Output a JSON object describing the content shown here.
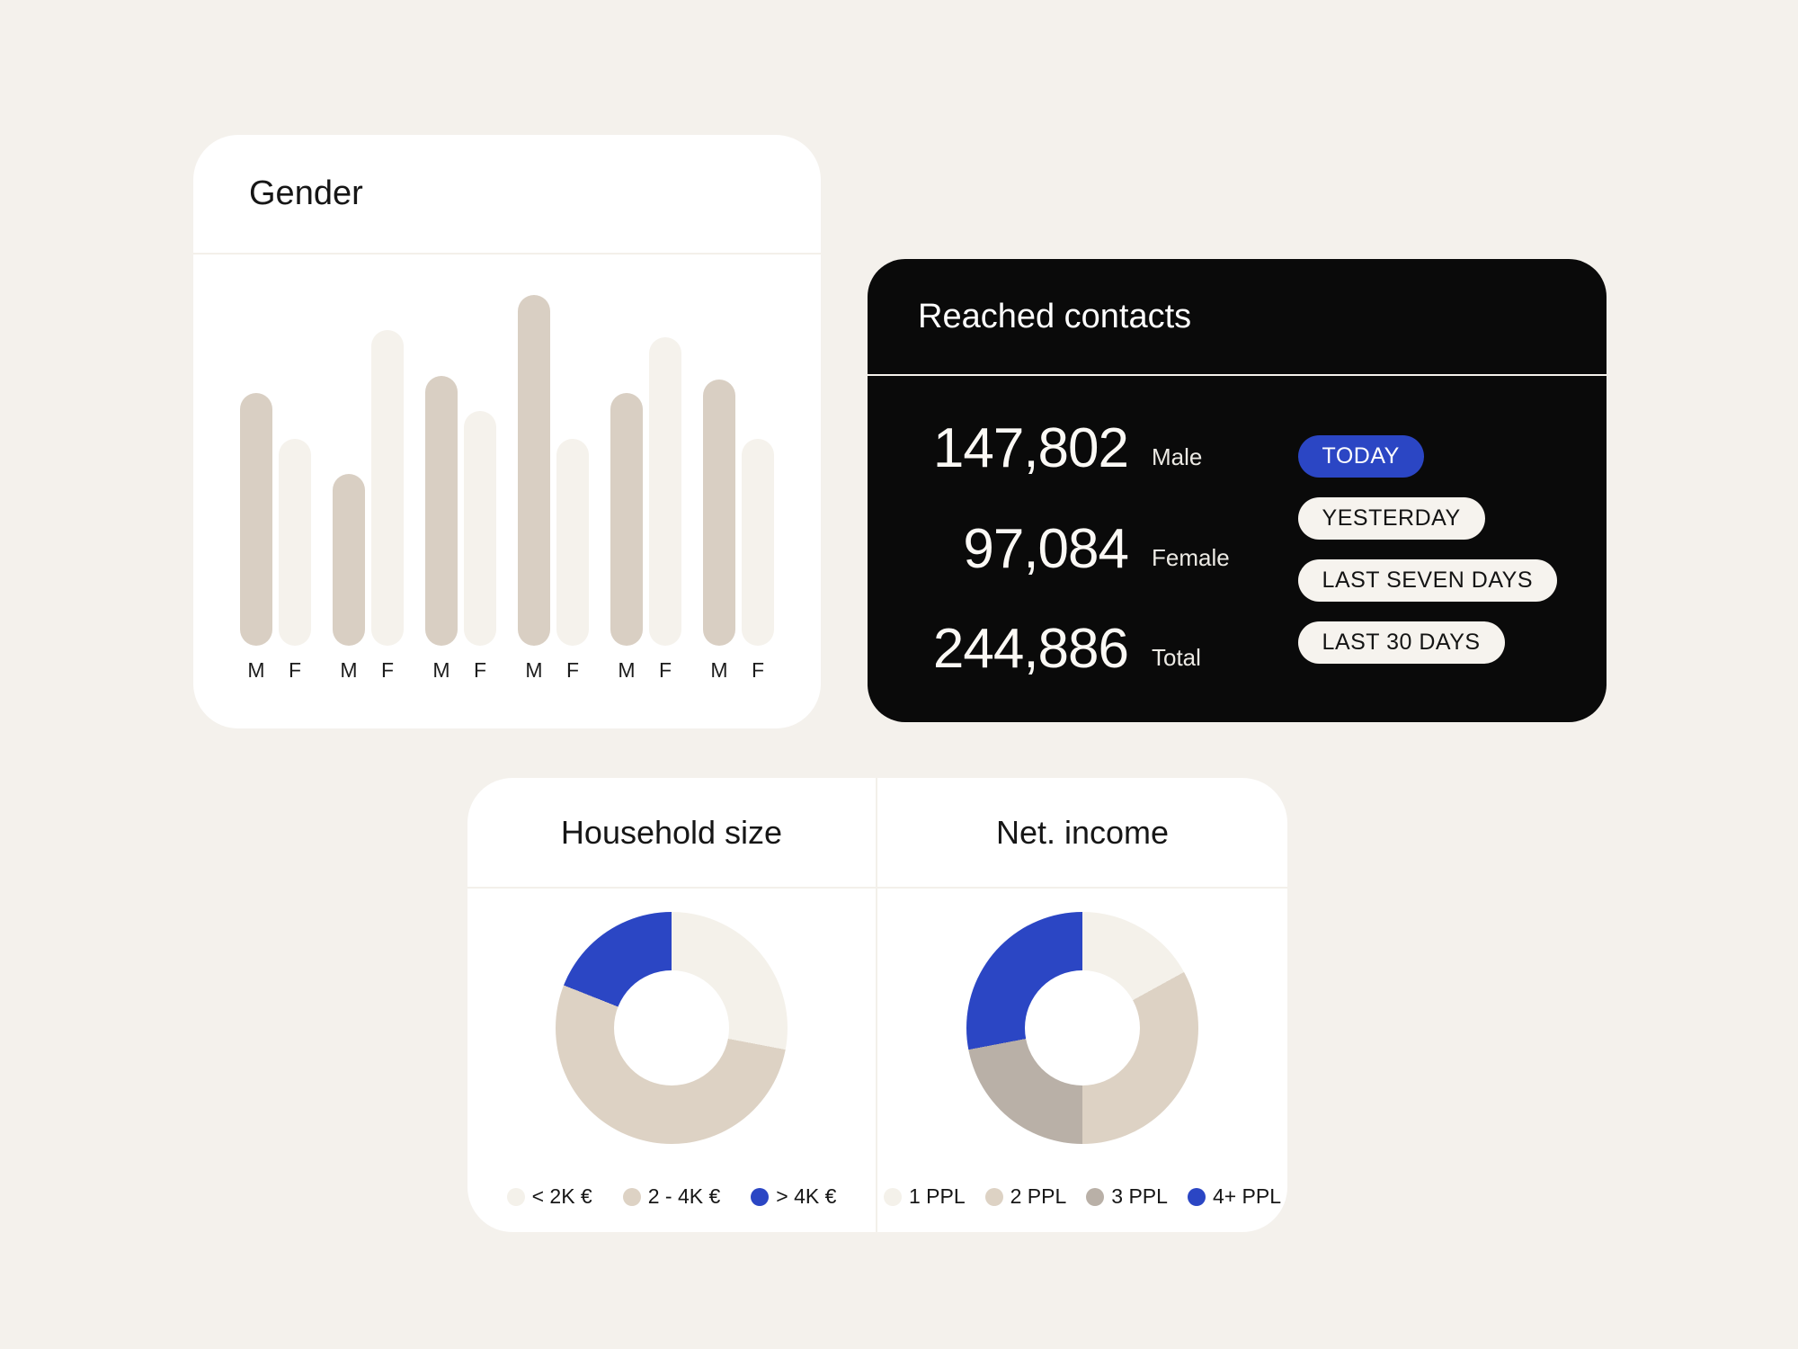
{
  "colors": {
    "page_bg": "#f4f1ec",
    "card_bg": "#ffffff",
    "dark_card_bg": "#0a0a0a",
    "accent_blue": "#2b46c4",
    "bar_male": "#d9cfc3",
    "bar_female": "#f5f2ec",
    "pill_bg": "#f6f3ee",
    "pill_text": "#141414",
    "divider": "#f3f0ea",
    "dark_divider": "#f5f2ec",
    "donut_hole": "#ffffff",
    "text_light": "#ffffff"
  },
  "gender_card": {
    "title": "Gender"
  },
  "reached_card": {
    "title": "Reached contacts",
    "stats": [
      {
        "value": "147,802",
        "label": "Male"
      },
      {
        "value": "97,084",
        "label": "Female"
      },
      {
        "value": "244,886",
        "label": "Total"
      }
    ],
    "filters": [
      {
        "label": "TODAY",
        "active": true
      },
      {
        "label": "YESTERDAY",
        "active": false
      },
      {
        "label": "LAST SEVEN DAYS",
        "active": false
      },
      {
        "label": "LAST 30 DAYS",
        "active": false
      }
    ]
  },
  "household_card": {
    "title": "Household size"
  },
  "income_card": {
    "title": "Net. income"
  },
  "chart_data": [
    {
      "type": "bar",
      "title": "Gender",
      "description": "Paired bar chart, one M (taupe) and one F (cream) bar per group, no axis scale shown; values are relative heights 0-100",
      "labels": {
        "m": "M",
        "f": "F"
      },
      "male_color": "#d9cfc3",
      "female_color": "#f5f2ec",
      "pairs": [
        {
          "m": 72,
          "f": 59
        },
        {
          "m": 49,
          "f": 90
        },
        {
          "m": 77,
          "f": 67
        },
        {
          "m": 100,
          "f": 59
        },
        {
          "m": 72,
          "f": 88
        },
        {
          "m": 76,
          "f": 59
        }
      ],
      "ylim": [
        0,
        100
      ]
    },
    {
      "type": "pie",
      "subtype": "donut",
      "title": "Household size",
      "start": "12 o'clock, clockwise",
      "slices": [
        {
          "label": "< 2K €",
          "value": 28,
          "color": "#f4f1ea"
        },
        {
          "label": "2 - 4K €",
          "value": 53,
          "color": "#ddd2c4"
        },
        {
          "label": "> 4K €",
          "value": 19,
          "color": "#2b46c4"
        }
      ],
      "legend_position": "bottom"
    },
    {
      "type": "pie",
      "subtype": "donut",
      "title": "Net. income",
      "start": "12 o'clock, clockwise",
      "slices": [
        {
          "label": "1 PPL",
          "value": 17,
          "color": "#f4f1ea"
        },
        {
          "label": "2 PPL",
          "value": 33,
          "color": "#ddd2c4"
        },
        {
          "label": "3 PPL",
          "value": 22,
          "color": "#b9b0a7"
        },
        {
          "label": "4+ PPL",
          "value": 28,
          "color": "#2b46c4"
        }
      ],
      "legend_position": "bottom"
    }
  ]
}
